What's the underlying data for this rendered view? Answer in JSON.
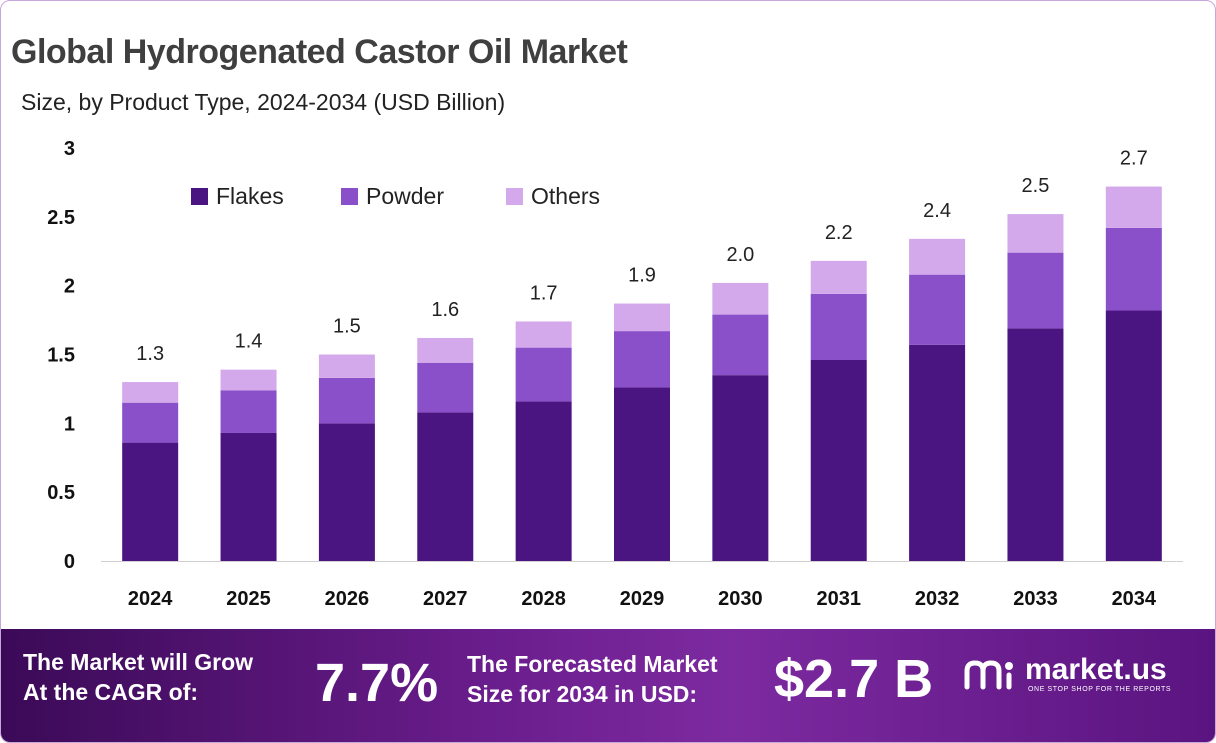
{
  "header": {
    "title": "Global Hydrogenated Castor Oil Market",
    "subtitle": "Size, by Product Type, 2024-2034 (USD Billion)"
  },
  "chart_data": {
    "type": "bar",
    "stacked": true,
    "categories": [
      "2024",
      "2025",
      "2026",
      "2027",
      "2028",
      "2029",
      "2030",
      "2031",
      "2032",
      "2033",
      "2034"
    ],
    "series": [
      {
        "name": "Flakes",
        "color": "#4b1581",
        "values": [
          0.86,
          0.93,
          1.0,
          1.08,
          1.16,
          1.26,
          1.35,
          1.46,
          1.57,
          1.69,
          1.82
        ]
      },
      {
        "name": "Powder",
        "color": "#8a50c9",
        "values": [
          0.29,
          0.31,
          0.33,
          0.36,
          0.39,
          0.41,
          0.44,
          0.48,
          0.51,
          0.55,
          0.6
        ]
      },
      {
        "name": "Others",
        "color": "#d4a9ec",
        "values": [
          0.15,
          0.15,
          0.17,
          0.18,
          0.19,
          0.2,
          0.23,
          0.24,
          0.26,
          0.28,
          0.3
        ]
      }
    ],
    "totals_labels": [
      "1.3",
      "1.4",
      "1.5",
      "1.6",
      "1.7",
      "1.9",
      "2.0",
      "2.2",
      "2.4",
      "2.5",
      "2.7"
    ],
    "ylim": [
      0,
      3
    ],
    "yticks": [
      "0",
      "0.5",
      "1",
      "1.5",
      "2",
      "2.5",
      "3"
    ],
    "legend_position": "top-left",
    "grid": false
  },
  "footer": {
    "cagr_label_line1": "The Market will Grow",
    "cagr_label_line2": "At the CAGR of:",
    "cagr_value": "7.7%",
    "forecast_label_line1": "The Forecasted Market",
    "forecast_label_line2": "Size for 2034 in USD:",
    "forecast_value": "$2.7 B",
    "brand_name": "market.us",
    "brand_tagline": "ONE STOP SHOP FOR THE REPORTS"
  },
  "colors": {
    "footer_start": "#3b0a57",
    "footer_end": "#7d2aa0"
  },
  "icons": [
    "market-us-logo-icon"
  ]
}
